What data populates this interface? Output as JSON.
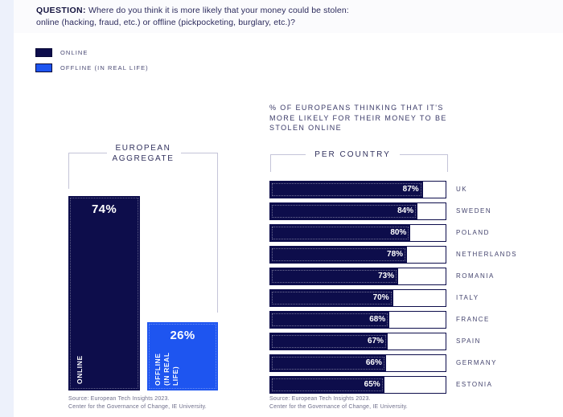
{
  "colors": {
    "navy": "#0d0d4b",
    "blue": "#1e55f0",
    "bracket": "#c4c4d8",
    "strip": "#edf1fb",
    "band": "#fbfbfd"
  },
  "question": {
    "label": "QUESTION:",
    "text_line1": "Where do you think it is more likely that your money could be stolen:",
    "text_line2": "online (hacking, fraud, etc.) or offline (pickpocketing, burglary, etc.)?"
  },
  "legend": {
    "items": [
      {
        "label": "ONLINE",
        "color": "#0d0d4b"
      },
      {
        "label": "OFFLINE (IN REAL LIFE)",
        "color": "#1e55f0"
      }
    ]
  },
  "right_heading": {
    "line1": "% OF EUROPEANS THINKING THAT IT'S",
    "line2": "MORE LIKELY FOR THEIR MONEY TO BE",
    "line3": "STOLEN ONLINE"
  },
  "aggregate": {
    "title_line1": "EUROPEAN",
    "title_line2": "AGGREGATE",
    "online": {
      "pct": "74%",
      "label": "ONLINE"
    },
    "offline": {
      "pct": "26%",
      "label_line1": "OFFLINE",
      "label_line2": "(IN REAL",
      "label_line3": "LIFE)"
    }
  },
  "per_country": {
    "title": "PER COUNTRY",
    "rows": [
      {
        "country": "UK",
        "value": 87,
        "pct": "87%"
      },
      {
        "country": "SWEDEN",
        "value": 84,
        "pct": "84%"
      },
      {
        "country": "POLAND",
        "value": 80,
        "pct": "80%"
      },
      {
        "country": "NETHERLANDS",
        "value": 78,
        "pct": "78%"
      },
      {
        "country": "ROMANIA",
        "value": 73,
        "pct": "73%"
      },
      {
        "country": "ITALY",
        "value": 70,
        "pct": "70%"
      },
      {
        "country": "FRANCE",
        "value": 68,
        "pct": "68%"
      },
      {
        "country": "SPAIN",
        "value": 67,
        "pct": "67%"
      },
      {
        "country": "GERMANY",
        "value": 66,
        "pct": "66%"
      },
      {
        "country": "ESTONIA",
        "value": 65,
        "pct": "65%"
      }
    ]
  },
  "source": {
    "line1": "Source: European Tech Insights 2023.",
    "line2": "Center for the Governance of Change, IE University."
  },
  "chart_data": [
    {
      "type": "bar",
      "orientation": "vertical",
      "title": "EUROPEAN AGGREGATE",
      "categories": [
        "ONLINE",
        "OFFLINE (IN REAL LIFE)"
      ],
      "values": [
        74,
        26
      ],
      "data_labels": [
        "74%",
        "26%"
      ],
      "unit": "%",
      "ylim": [
        0,
        100
      ],
      "colors": [
        "#0d0d4b",
        "#1e55f0"
      ],
      "grid": false,
      "legend_position": "top-left"
    },
    {
      "type": "bar",
      "orientation": "horizontal",
      "title": "PER COUNTRY",
      "subtitle": "% OF EUROPEANS THINKING THAT IT'S MORE LIKELY FOR THEIR MONEY TO BE STOLEN ONLINE",
      "categories": [
        "UK",
        "SWEDEN",
        "POLAND",
        "NETHERLANDS",
        "ROMANIA",
        "ITALY",
        "FRANCE",
        "SPAIN",
        "GERMANY",
        "ESTONIA"
      ],
      "values": [
        87,
        84,
        80,
        78,
        73,
        70,
        68,
        67,
        66,
        65
      ],
      "data_labels": [
        "87%",
        "84%",
        "80%",
        "78%",
        "73%",
        "70%",
        "68%",
        "67%",
        "66%",
        "65%"
      ],
      "unit": "%",
      "xlim": [
        0,
        100
      ],
      "bar_color": "#0d0d4b",
      "track_color": "#ffffff",
      "grid": false
    }
  ]
}
